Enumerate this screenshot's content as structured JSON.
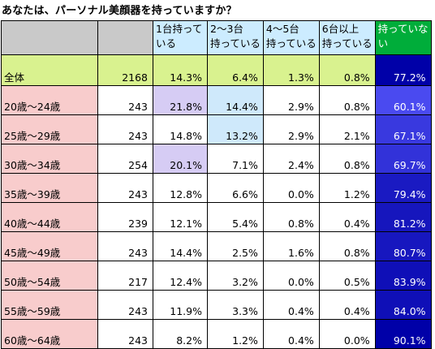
{
  "title": "あなたは、パーソナル美顔器を持っていますか？",
  "columns": [
    "1台持っている",
    "2～3台持っている",
    "4～5台持っている",
    "6台以上持っている",
    "持っていない"
  ],
  "column_lines": [
    [
      "1台持って",
      "いる"
    ],
    [
      "2～3台",
      "持っている"
    ],
    [
      "4～5台",
      "持っている"
    ],
    [
      "6台以上",
      "持っている"
    ],
    [
      "持っていな",
      "い"
    ]
  ],
  "rows": [
    {
      "label": "全体",
      "n": "2168",
      "values": [
        "14.3%",
        "6.4%",
        "1.3%",
        "0.8%",
        "77.2%"
      ]
    },
    {
      "label": "20歳～24歳",
      "n": "243",
      "values": [
        "21.8%",
        "14.4%",
        "2.9%",
        "0.8%",
        "60.1%"
      ]
    },
    {
      "label": "25歳～29歳",
      "n": "243",
      "values": [
        "14.8%",
        "13.2%",
        "2.9%",
        "2.1%",
        "67.1%"
      ]
    },
    {
      "label": "30歳～34歳",
      "n": "254",
      "values": [
        "20.1%",
        "7.1%",
        "2.4%",
        "0.8%",
        "69.7%"
      ]
    },
    {
      "label": "35歳～39歳",
      "n": "243",
      "values": [
        "12.8%",
        "6.6%",
        "0.0%",
        "1.2%",
        "79.4%"
      ]
    },
    {
      "label": "40歳～44歳",
      "n": "239",
      "values": [
        "12.1%",
        "5.4%",
        "0.8%",
        "0.4%",
        "81.2%"
      ]
    },
    {
      "label": "45歳～49歳",
      "n": "243",
      "values": [
        "14.4%",
        "2.5%",
        "1.6%",
        "0.8%",
        "80.7%"
      ]
    },
    {
      "label": "50歳～54歳",
      "n": "217",
      "values": [
        "12.4%",
        "3.2%",
        "0.0%",
        "0.5%",
        "83.9%"
      ]
    },
    {
      "label": "55歳～59歳",
      "n": "243",
      "values": [
        "11.9%",
        "3.3%",
        "0.4%",
        "0.4%",
        "84.0%"
      ]
    },
    {
      "label": "60歳～64歳",
      "n": "243",
      "values": [
        "8.2%",
        "1.2%",
        "0.4%",
        "0.0%",
        "90.1%"
      ]
    }
  ],
  "chart_data": {
    "type": "table",
    "title": "あなたは、パーソナル美顔器を持っていますか？",
    "categories": [
      "全体",
      "20歳～24歳",
      "25歳～29歳",
      "30歳～34歳",
      "35歳～39歳",
      "40歳～44歳",
      "45歳～49歳",
      "50歳～54歳",
      "55歳～59歳",
      "60歳～64歳"
    ],
    "n": [
      2168,
      243,
      243,
      254,
      243,
      239,
      243,
      217,
      243,
      243
    ],
    "series": [
      {
        "name": "1台持っている",
        "values": [
          14.3,
          21.8,
          14.8,
          20.1,
          12.8,
          12.1,
          14.4,
          12.4,
          11.9,
          8.2
        ]
      },
      {
        "name": "2～3台持っている",
        "values": [
          6.4,
          14.4,
          13.2,
          7.1,
          6.6,
          5.4,
          2.5,
          3.2,
          3.3,
          1.2
        ]
      },
      {
        "name": "4～5台持っている",
        "values": [
          1.3,
          2.9,
          2.9,
          2.4,
          0.0,
          0.8,
          1.6,
          0.0,
          0.4,
          0.4
        ]
      },
      {
        "name": "6台以上持っている",
        "values": [
          0.8,
          0.8,
          2.1,
          0.8,
          1.2,
          0.4,
          0.8,
          0.5,
          0.4,
          0.0
        ]
      },
      {
        "name": "持っていない",
        "values": [
          77.2,
          60.1,
          67.1,
          69.7,
          79.4,
          81.2,
          80.7,
          83.9,
          84.0,
          90.1
        ]
      }
    ],
    "unit": "%"
  },
  "colors": {
    "header_gray": "#c9c9c9",
    "header_category": "#ccecff",
    "header_none": "#00ad3a",
    "total_row": "#d9f28f",
    "age_label": "#f8cccc",
    "highlight_blue": "#cfe9fb",
    "highlight_purple": "#d6ccf4",
    "none_dark": "#0000a8",
    "none_light": "#4a4af0"
  },
  "highlights": {
    "1": {
      "0": "hi-purple",
      "1": "hi-blue"
    },
    "2": {
      "1": "hi-blue"
    },
    "3": {
      "0": "hi-purple"
    }
  }
}
